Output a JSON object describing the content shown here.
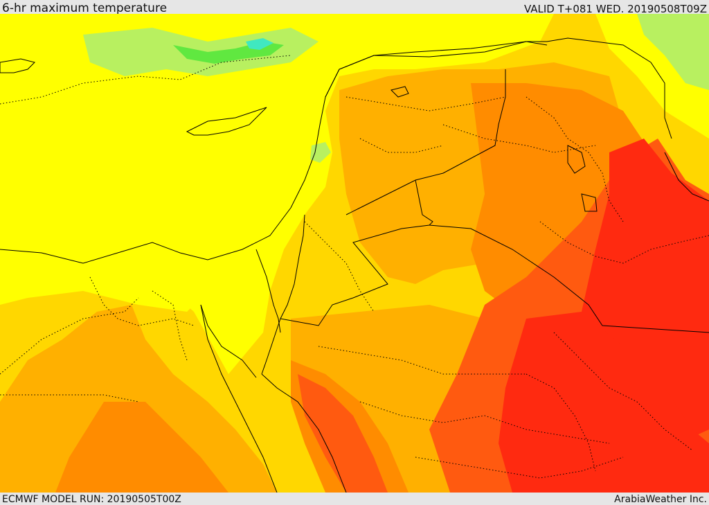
{
  "header": {
    "title": "6-hr maximum temperature",
    "valid": "VALID T+081 WED. 20190508T09Z"
  },
  "footer": {
    "model_run": "ECMWF MODEL RUN: 20190505T00Z",
    "credit": "ArabiaWeather Inc."
  },
  "palette": {
    "light_green": "#b8f060",
    "green": "#60e840",
    "cyan": "#40e8c0",
    "yellow": "#ffff00",
    "gold": "#ffd700",
    "orange_light": "#ffb000",
    "orange": "#ff8c00",
    "orange_dark": "#ff5a10",
    "red": "#ff2a10",
    "border": "#000000"
  }
}
